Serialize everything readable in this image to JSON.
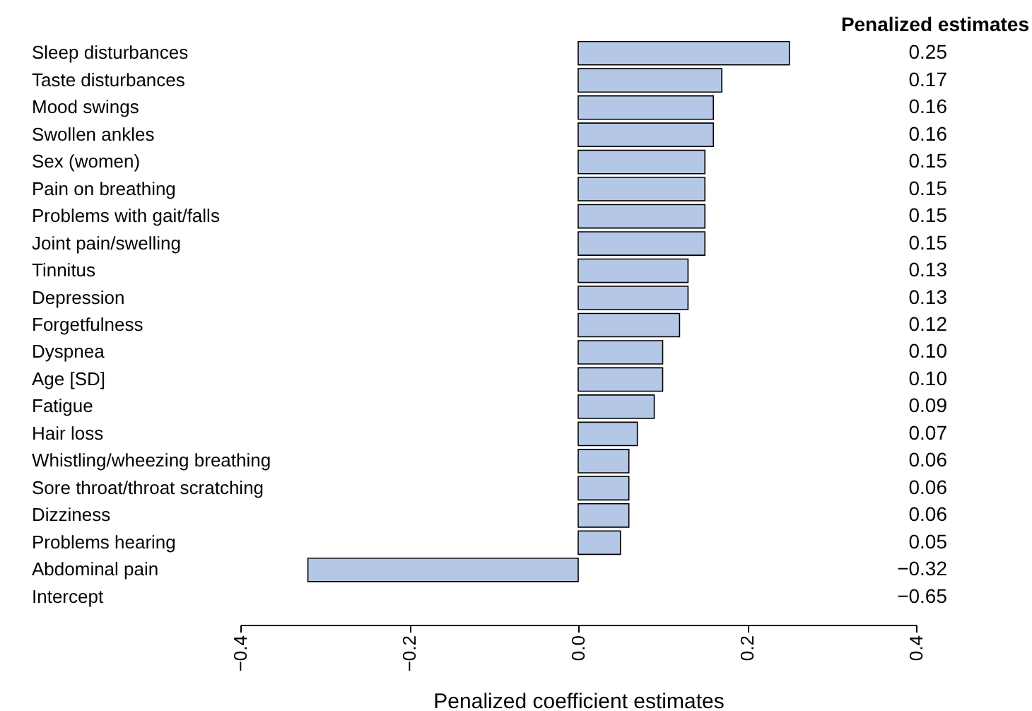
{
  "chart_data": {
    "type": "bar",
    "orientation": "horizontal",
    "xlabel": "Penalized coefficient estimates",
    "annotations": [
      "Penalized estimates"
    ],
    "categories": [
      "Sleep disturbances",
      "Taste disturbances",
      "Mood swings",
      "Swollen ankles",
      "Sex (women)",
      "Pain on breathing",
      "Problems with gait/falls",
      "Joint pain/swelling",
      "Tinnitus",
      "Depression",
      "Forgetfulness",
      "Dyspnea",
      "Age [SD]",
      "Fatigue",
      "Hair loss",
      "Whistling/wheezing breathing",
      "Sore throat/throat scratching",
      "Dizziness",
      "Problems hearing",
      "Abdominal pain",
      "Intercept"
    ],
    "values": [
      0.25,
      0.17,
      0.16,
      0.16,
      0.15,
      0.15,
      0.15,
      0.15,
      0.13,
      0.13,
      0.12,
      0.1,
      0.1,
      0.09,
      0.07,
      0.06,
      0.06,
      0.06,
      0.05,
      -0.32,
      null
    ],
    "value_labels": [
      "0.25",
      "0.17",
      "0.16",
      "0.16",
      "0.15",
      "0.15",
      "0.15",
      "0.15",
      "0.13",
      "0.13",
      "0.12",
      "0.10",
      "0.10",
      "0.09",
      "0.07",
      "0.06",
      "0.06",
      "0.06",
      "0.05",
      "−0.32",
      "−0.65"
    ],
    "color": "#b4c7e7",
    "xlim": [
      -0.4,
      0.4
    ],
    "xticks": [
      -0.4,
      -0.2,
      {
        "value": 0,
        "label": "0.0"
      },
      0.2,
      0.4
    ],
    "grid": false
  }
}
